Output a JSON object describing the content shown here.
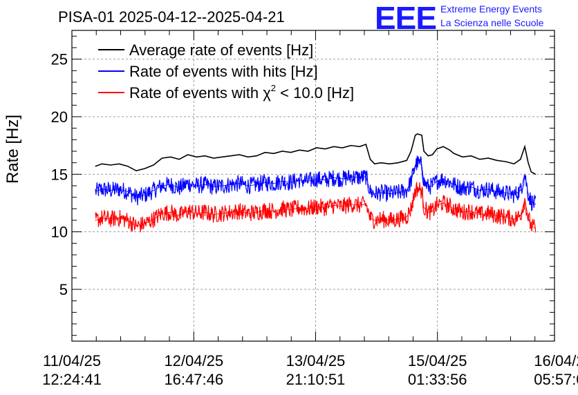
{
  "chart_data": {
    "type": "line",
    "title": "PISA-01 2025-04-12--2025-04-21",
    "ylabel": "Rate [Hz]",
    "xlabel": "",
    "ylim": [
      0.5,
      27.5
    ],
    "yticks": [
      5,
      10,
      15,
      20,
      25
    ],
    "x_ticks": [
      {
        "date": "11/04/25",
        "time": "12:24:41"
      },
      {
        "date": "12/04/25",
        "time": "16:47:46"
      },
      {
        "date": "13/04/25",
        "time": "21:10:51"
      },
      {
        "date": "15/04/25",
        "time": "01:33:56"
      },
      {
        "date": "16/04/2",
        "time": "05:57:0"
      }
    ],
    "x_domain_hours": [
      0,
      112.42
    ],
    "x_tick_hours": [
      0,
      28.39,
      56.77,
      85.15,
      113.54
    ],
    "grid": true,
    "legend_position": "top-left",
    "series": [
      {
        "name": "Average rate of events [Hz]",
        "color": "#000000",
        "x_hours": [
          5.5,
          7,
          9,
          11,
          13,
          15,
          17,
          19,
          21,
          23,
          25,
          27,
          29,
          31,
          33,
          35,
          37,
          39,
          41,
          43,
          45,
          47,
          49,
          51,
          53,
          55,
          57,
          59,
          61,
          63,
          65,
          67,
          68.5,
          69.5,
          70.5,
          72,
          74,
          76,
          78,
          79,
          80,
          80.5,
          81.5,
          82,
          83,
          84,
          85,
          86.5,
          88,
          89,
          91,
          93,
          95,
          97,
          99,
          101,
          103,
          104.5,
          105.5,
          106.3,
          107,
          108
        ],
        "values": [
          15.7,
          15.9,
          15.8,
          15.9,
          15.7,
          15.3,
          15.5,
          15.8,
          16.4,
          16.5,
          16.3,
          16.7,
          16.5,
          16.6,
          16.4,
          16.5,
          16.6,
          16.7,
          16.5,
          16.6,
          16.9,
          16.8,
          17.0,
          16.9,
          17.1,
          17.0,
          17.3,
          17.2,
          17.4,
          17.3,
          17.5,
          17.4,
          17.6,
          16.3,
          15.9,
          16.0,
          15.9,
          16.0,
          16.2,
          17.0,
          18.4,
          18.5,
          18.4,
          17.0,
          16.6,
          16.7,
          17.2,
          17.4,
          17.1,
          16.8,
          16.5,
          16.6,
          16.3,
          16.4,
          16.2,
          16.1,
          15.9,
          16.3,
          17.4,
          16.0,
          15.2,
          15.0
        ],
        "band": 0
      },
      {
        "name": "Rate of events with hits [Hz]",
        "color": "#0000ff",
        "x_hours": [
          5.5,
          7,
          9,
          11,
          13,
          15,
          17,
          19,
          21,
          23,
          25,
          27,
          29,
          31,
          33,
          35,
          37,
          39,
          41,
          43,
          45,
          47,
          49,
          51,
          53,
          55,
          57,
          59,
          61,
          63,
          65,
          67,
          68.5,
          69.5,
          70.5,
          72,
          74,
          76,
          78,
          79,
          80,
          80.5,
          81.5,
          82,
          83,
          84,
          85,
          86.5,
          88,
          89,
          91,
          93,
          95,
          97,
          99,
          101,
          103,
          104.5,
          105.5,
          106.3,
          107,
          108
        ],
        "values": [
          13.5,
          13.7,
          13.6,
          13.7,
          13.5,
          13.0,
          13.2,
          13.6,
          14.0,
          14.1,
          13.8,
          14.2,
          14.0,
          14.1,
          13.9,
          14.0,
          14.1,
          14.2,
          14.0,
          14.1,
          14.3,
          14.2,
          14.4,
          14.3,
          14.5,
          14.4,
          14.6,
          14.5,
          14.7,
          14.6,
          14.8,
          14.7,
          14.8,
          13.5,
          13.3,
          13.4,
          13.3,
          13.4,
          13.6,
          14.4,
          15.8,
          16.0,
          15.8,
          14.3,
          13.9,
          14.0,
          14.4,
          14.6,
          14.3,
          14.1,
          13.8,
          13.9,
          13.6,
          13.7,
          13.5,
          13.4,
          13.2,
          13.6,
          15.0,
          13.3,
          12.6,
          12.4
        ],
        "band": 0.75
      },
      {
        "name": "Rate of events with χ² < 10.0 [Hz]",
        "legend_main": "Rate of events with ",
        "legend_chi": "χ",
        "legend_sup": "2",
        "legend_rest": " < 10.0 [Hz]",
        "color": "#ff0000",
        "x_hours": [
          5.5,
          7,
          9,
          11,
          13,
          15,
          17,
          19,
          21,
          23,
          25,
          27,
          29,
          31,
          33,
          35,
          37,
          39,
          41,
          43,
          45,
          47,
          49,
          51,
          53,
          55,
          57,
          59,
          61,
          63,
          65,
          67,
          68.5,
          69.5,
          70.5,
          72,
          74,
          76,
          78,
          79,
          80,
          80.5,
          81.5,
          82,
          83,
          84,
          85,
          86.5,
          88,
          89,
          91,
          93,
          95,
          97,
          99,
          101,
          103,
          104.5,
          105.5,
          106.3,
          107,
          108
        ],
        "values": [
          11.0,
          11.2,
          11.1,
          11.2,
          11.0,
          10.5,
          10.7,
          11.1,
          11.6,
          11.7,
          11.4,
          11.8,
          11.6,
          11.7,
          11.5,
          11.6,
          11.7,
          11.8,
          11.6,
          11.7,
          11.9,
          11.8,
          12.0,
          11.9,
          12.1,
          12.0,
          12.2,
          12.1,
          12.3,
          12.2,
          12.4,
          12.3,
          12.4,
          11.2,
          11.0,
          11.1,
          11.0,
          11.1,
          11.3,
          12.0,
          13.6,
          13.8,
          13.6,
          12.1,
          11.7,
          11.8,
          12.3,
          12.5,
          12.2,
          12.0,
          11.7,
          11.8,
          11.5,
          11.6,
          11.4,
          11.3,
          11.1,
          11.4,
          12.8,
          11.2,
          10.5,
          10.3
        ],
        "band": 0.75
      }
    ]
  },
  "brand": {
    "logo_text": "EEE",
    "line1": "Extreme Energy Events",
    "line2": "La Scienza nelle Scuole",
    "color": "#1a1aff"
  }
}
